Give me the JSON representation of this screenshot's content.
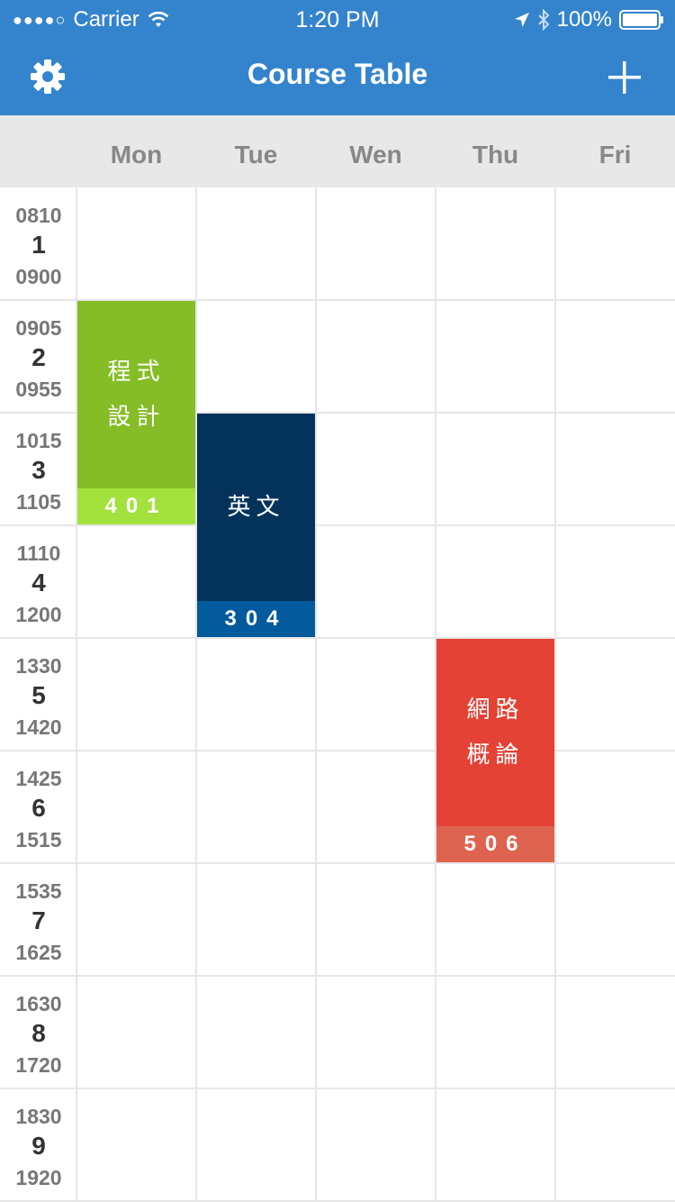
{
  "status_bar": {
    "signal": "●●●●○",
    "carrier": "Carrier",
    "time": "1:20 PM",
    "battery": "100%"
  },
  "nav": {
    "title": "Course Table",
    "settings_icon": "gear-icon",
    "add_icon": "plus-icon"
  },
  "days": [
    "Mon",
    "Tue",
    "Wen",
    "Thu",
    "Fri"
  ],
  "periods": [
    {
      "start": "0810",
      "num": "1",
      "end": "0900"
    },
    {
      "start": "0905",
      "num": "2",
      "end": "0955"
    },
    {
      "start": "1015",
      "num": "3",
      "end": "1105"
    },
    {
      "start": "1110",
      "num": "4",
      "end": "1200"
    },
    {
      "start": "1330",
      "num": "5",
      "end": "1420"
    },
    {
      "start": "1425",
      "num": "6",
      "end": "1515"
    },
    {
      "start": "1535",
      "num": "7",
      "end": "1625"
    },
    {
      "start": "1630",
      "num": "8",
      "end": "1720"
    },
    {
      "start": "1830",
      "num": "9",
      "end": "1920"
    }
  ],
  "courses": [
    {
      "name_lines": [
        "程式",
        "設計"
      ],
      "room": "401",
      "day": "Mon",
      "start_period": 2,
      "end_period": 3,
      "color": "#85bd27",
      "room_color": "#a3e23d"
    },
    {
      "name_lines": [
        "英文"
      ],
      "room": "304",
      "day": "Tue",
      "start_period": 3,
      "end_period": 4,
      "color": "#03335a",
      "room_color": "#035a9c"
    },
    {
      "name_lines": [
        "網路",
        "概論"
      ],
      "room": "506",
      "day": "Thu",
      "start_period": 5,
      "end_period": 6,
      "color": "#e34234",
      "room_color": "#df6450"
    }
  ],
  "colors": {
    "nav_bar": "#3484cd",
    "header_bg": "#e8e8e8",
    "grid_line": "#e6e6e6"
  }
}
